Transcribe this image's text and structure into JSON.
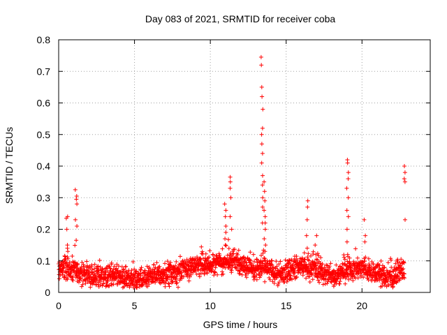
{
  "chart_data": {
    "type": "scatter",
    "title": "Day 083 of 2021, SRMTID for receiver coba",
    "xlabel": "GPS time / hours",
    "ylabel": "SRMTID / TECUs",
    "xlim": [
      0,
      24.5
    ],
    "ylim": [
      0,
      0.8
    ],
    "xticks": [
      0,
      5,
      10,
      15,
      20
    ],
    "xtick_labels": [
      "0",
      "5",
      "10",
      "15",
      "20"
    ],
    "yticks": [
      0,
      0.1,
      0.2,
      0.3,
      0.4,
      0.5,
      0.6,
      0.7,
      0.8
    ],
    "ytick_labels": [
      "0",
      "0.1",
      "0.2",
      "0.3",
      "0.4",
      "0.5",
      "0.6",
      "0.7",
      "0.8"
    ],
    "grid": true,
    "marker": "plus",
    "color": "#ff0000",
    "baseline": [
      [
        0.0,
        0.075
      ],
      [
        0.5,
        0.08
      ],
      [
        1.0,
        0.065
      ],
      [
        1.5,
        0.06
      ],
      [
        2.0,
        0.055
      ],
      [
        2.5,
        0.05
      ],
      [
        3.0,
        0.05
      ],
      [
        3.5,
        0.055
      ],
      [
        4.0,
        0.05
      ],
      [
        4.5,
        0.042
      ],
      [
        5.0,
        0.038
      ],
      [
        5.5,
        0.045
      ],
      [
        6.0,
        0.05
      ],
      [
        6.5,
        0.055
      ],
      [
        7.0,
        0.058
      ],
      [
        7.5,
        0.06
      ],
      [
        8.0,
        0.065
      ],
      [
        8.5,
        0.075
      ],
      [
        9.0,
        0.085
      ],
      [
        9.5,
        0.09
      ],
      [
        10.0,
        0.095
      ],
      [
        10.5,
        0.09
      ],
      [
        11.0,
        0.1
      ],
      [
        11.5,
        0.1
      ],
      [
        12.0,
        0.095
      ],
      [
        12.5,
        0.085
      ],
      [
        13.0,
        0.075
      ],
      [
        13.5,
        0.08
      ],
      [
        14.0,
        0.07
      ],
      [
        14.5,
        0.055
      ],
      [
        15.0,
        0.065
      ],
      [
        15.5,
        0.08
      ],
      [
        16.0,
        0.085
      ],
      [
        16.5,
        0.08
      ],
      [
        17.0,
        0.075
      ],
      [
        17.5,
        0.06
      ],
      [
        18.0,
        0.055
      ],
      [
        18.5,
        0.06
      ],
      [
        19.0,
        0.07
      ],
      [
        19.5,
        0.075
      ],
      [
        20.0,
        0.08
      ],
      [
        20.5,
        0.07
      ],
      [
        21.0,
        0.06
      ],
      [
        21.5,
        0.05
      ],
      [
        22.0,
        0.05
      ],
      [
        22.5,
        0.065
      ],
      [
        22.8,
        0.07
      ]
    ],
    "spikes": [
      {
        "x": 0.55,
        "values": [
          0.13,
          0.14,
          0.15,
          0.2,
          0.235,
          0.24
        ]
      },
      {
        "x": 1.15,
        "values": [
          0.165,
          0.21,
          0.23,
          0.28,
          0.295,
          0.305,
          0.325
        ]
      },
      {
        "x": 11.0,
        "values": [
          0.15,
          0.17,
          0.19,
          0.21,
          0.24,
          0.26,
          0.28
        ]
      },
      {
        "x": 11.35,
        "values": [
          0.2,
          0.24,
          0.3,
          0.33,
          0.35,
          0.365
        ]
      },
      {
        "x": 13.4,
        "values": [
          0.22,
          0.27,
          0.3,
          0.34,
          0.37,
          0.41,
          0.44,
          0.47,
          0.5,
          0.52,
          0.58,
          0.62,
          0.65,
          0.72,
          0.745
        ]
      },
      {
        "x": 13.6,
        "values": [
          0.13,
          0.15,
          0.17,
          0.2,
          0.22,
          0.24,
          0.26,
          0.29,
          0.32,
          0.35
        ]
      },
      {
        "x": 16.4,
        "values": [
          0.14,
          0.18,
          0.23,
          0.27,
          0.29
        ]
      },
      {
        "x": 16.95,
        "values": [
          0.12,
          0.15,
          0.18
        ]
      },
      {
        "x": 19.05,
        "values": [
          0.12,
          0.16,
          0.2,
          0.24,
          0.26,
          0.3,
          0.33,
          0.36,
          0.38,
          0.41,
          0.42
        ]
      },
      {
        "x": 20.2,
        "values": [
          0.16,
          0.18,
          0.23
        ]
      },
      {
        "x": 22.8,
        "values": [
          0.23,
          0.35,
          0.36,
          0.38,
          0.4
        ]
      }
    ]
  }
}
